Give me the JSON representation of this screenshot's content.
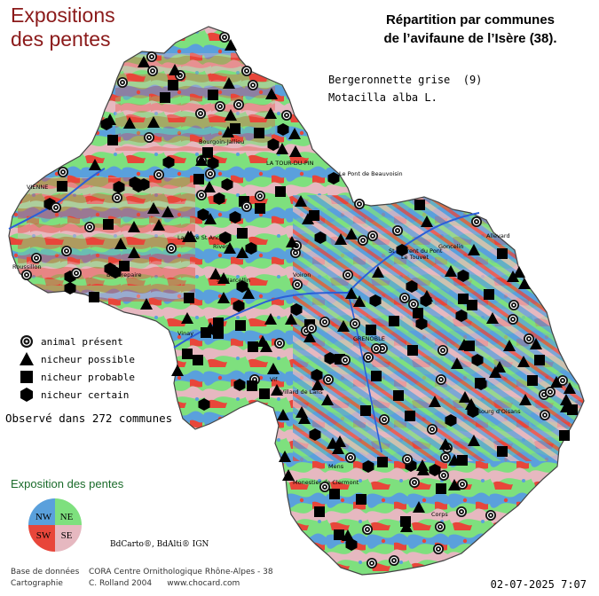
{
  "title": {
    "line1": "Expositions",
    "line2": "des pentes"
  },
  "heading": {
    "line1": "Répartition par communes",
    "line2": "de l’avifaune de l’Isère (38)."
  },
  "species": {
    "common": "Bergeronnette grise  (9)",
    "latin": "Motacilla alba L."
  },
  "legend": [
    {
      "symbol": "circle",
      "label": "animal présent"
    },
    {
      "symbol": "triangle",
      "label": "nicheur possible"
    },
    {
      "symbol": "square",
      "label": "nicheur probable"
    },
    {
      "symbol": "hexagon",
      "label": "nicheur certain"
    }
  ],
  "observed": "Observé dans 272 communes",
  "exposition": {
    "title": "Exposition des pentes",
    "quadrants": [
      {
        "label": "NW",
        "color": "#5aa0dc"
      },
      {
        "label": "NE",
        "color": "#7ee07e"
      },
      {
        "label": "SW",
        "color": "#e8463a"
      },
      {
        "label": "SE",
        "color": "#e6b8c0"
      }
    ]
  },
  "credit": "BdCarto®, BdAlti® IGN",
  "footer": {
    "row1_label": "Base de données",
    "row1_value": "CORA Centre Ornithologique Rhône-Alpes - 38",
    "row2_label": "Cartographie",
    "row2_value": "C. Rolland 2004      www.chocard.com"
  },
  "date": "02-07-2025 7:07",
  "places": [
    "VIENNE",
    "Bourgoin-Jallieu",
    "LA TOUR-DU-PIN",
    "Le Pont de Beauvoisin",
    "Roussillon",
    "Beaurepaire",
    "St Laurent du Pont",
    "Le Touvet",
    "Goncelin",
    "GRENOBLE",
    "Vif",
    "Le Bourg d'Oisans",
    "Mens",
    "Voiron",
    "Rives",
    "Vinay",
    "Villard de Lans",
    "Monestier de Clermont",
    "Corps",
    "La Côte St André",
    "St Marcellin",
    "Allevard"
  ],
  "colors": {
    "NW": "#5aa0dc",
    "NE": "#7ee07e",
    "SW": "#e8463a",
    "SE": "#e6b8c0",
    "map_background": "#ffffff"
  }
}
